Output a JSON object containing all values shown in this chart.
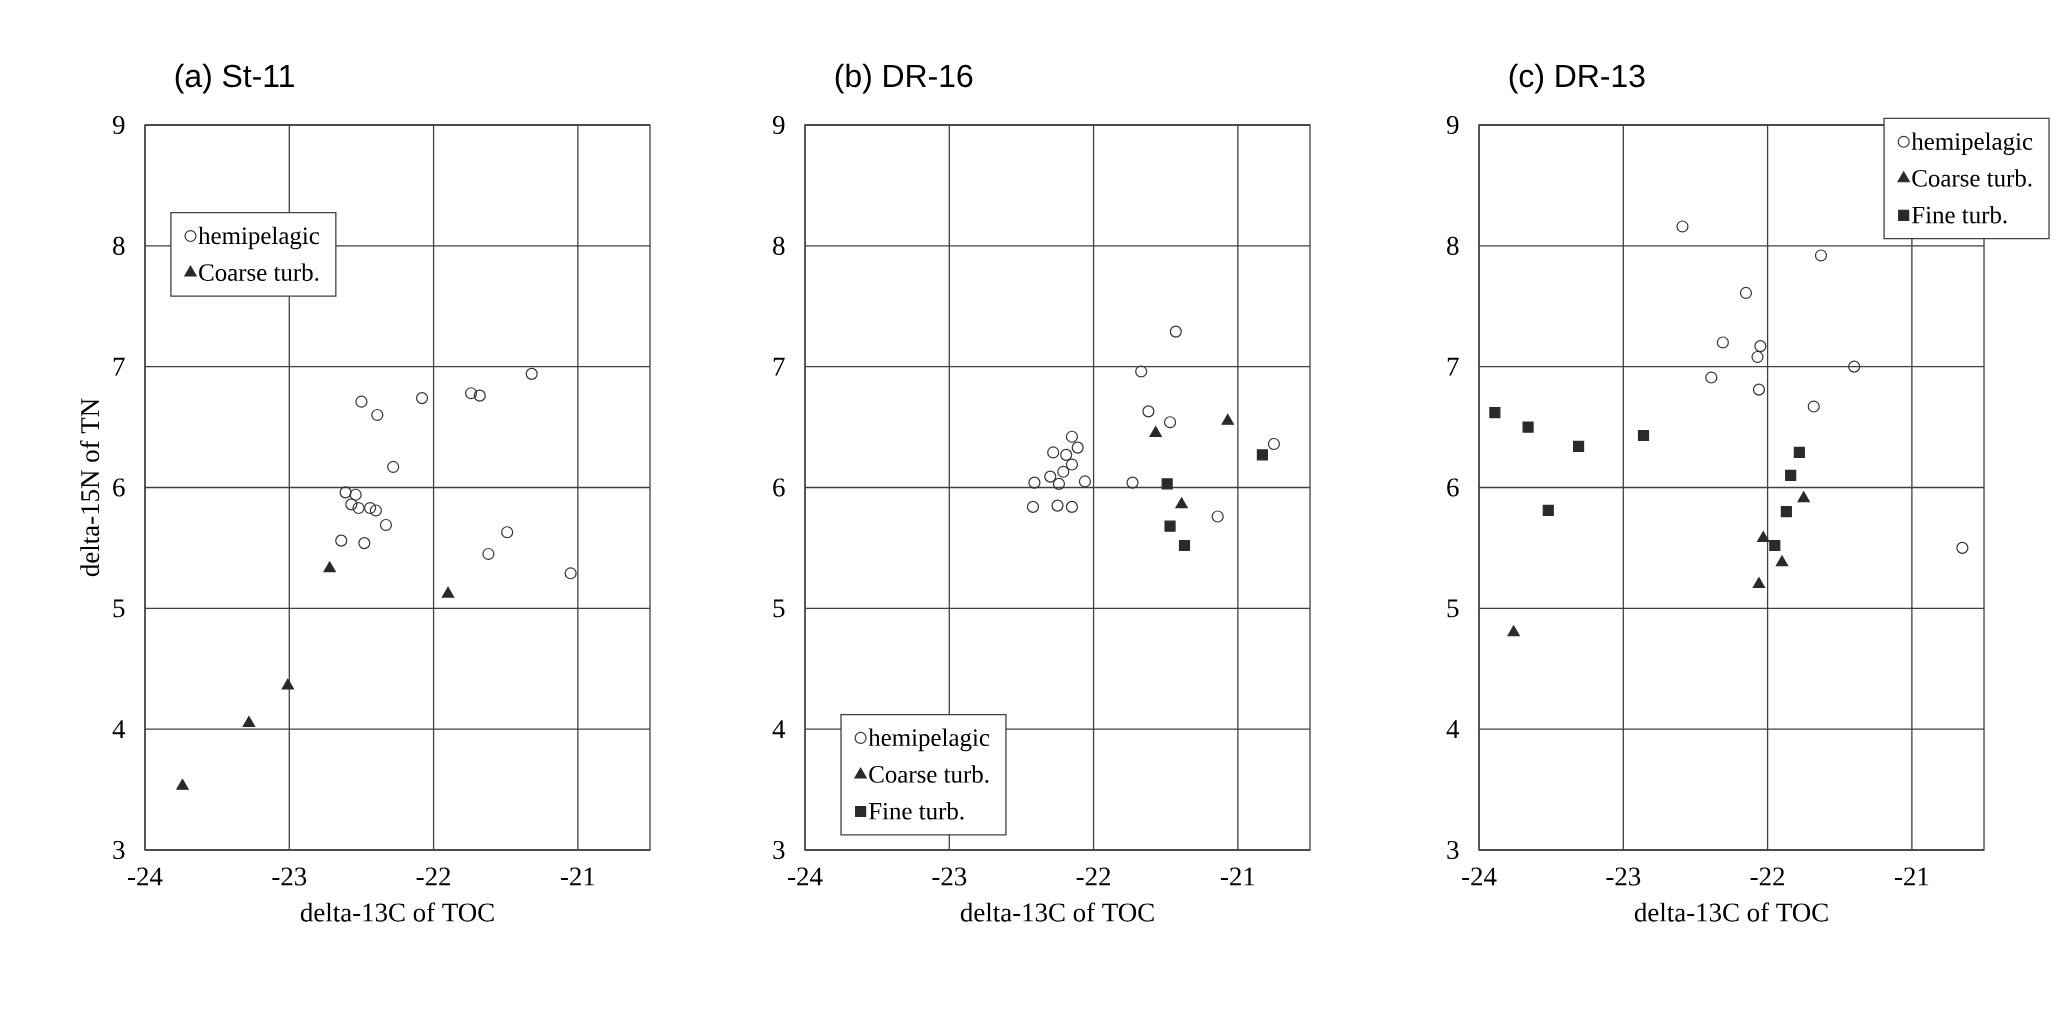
{
  "chart_data": [
    {
      "type": "scatter",
      "title": "(a) St-11",
      "xlabel": "delta-13C of TOC",
      "ylabel": "delta-15N of TN",
      "xlim": [
        -24,
        -20.5
      ],
      "ylim": [
        3,
        9
      ],
      "xticks": [
        -24,
        -23,
        -22,
        -21
      ],
      "yticks": [
        3,
        4,
        5,
        6,
        7,
        8,
        9
      ],
      "grid": true,
      "legend": "top left",
      "series": [
        {
          "name": "hemipelagic",
          "color": "#333333",
          "marker": "circle",
          "x": [
            -22.5,
            -22.39,
            -22.08,
            -21.74,
            -21.68,
            -21.32,
            -22.28,
            -22.61,
            -22.54,
            -22.57,
            -22.52,
            -22.44,
            -22.4,
            -22.33,
            -22.64,
            -22.48,
            -21.49,
            -21.62,
            -21.05
          ],
          "values": [
            6.71,
            6.6,
            6.74,
            6.78,
            6.76,
            6.94,
            6.17,
            5.96,
            5.94,
            5.86,
            5.83,
            5.83,
            5.81,
            5.69,
            5.56,
            5.54,
            5.63,
            5.45,
            5.29
          ]
        },
        {
          "name": "Coarse turb.",
          "color": "#2a2a2a",
          "marker": "triangle",
          "x": [
            -22.72,
            -21.9,
            -23.01,
            -23.28,
            -23.74
          ],
          "values": [
            5.33,
            5.12,
            4.36,
            4.05,
            3.53
          ]
        }
      ]
    },
    {
      "type": "scatter",
      "title": "(b) DR-16",
      "xlabel": "delta-13C of TOC",
      "xlim": [
        -24,
        -20.5
      ],
      "ylim": [
        3,
        9
      ],
      "xticks": [
        -24,
        -23,
        -22,
        -21
      ],
      "yticks": [
        3,
        4,
        5,
        6,
        7,
        8,
        9
      ],
      "grid": true,
      "legend": "bottom left",
      "series": [
        {
          "name": "hemipelagic",
          "color": "#333333",
          "marker": "circle",
          "x": [
            -21.43,
            -21.67,
            -21.62,
            -21.47,
            -20.75,
            -22.15,
            -22.11,
            -22.28,
            -22.19,
            -22.15,
            -22.21,
            -22.3,
            -22.24,
            -22.41,
            -22.06,
            -21.73,
            -22.42,
            -22.25,
            -22.15,
            -21.14
          ],
          "values": [
            7.29,
            6.96,
            6.63,
            6.54,
            6.36,
            6.42,
            6.33,
            6.29,
            6.27,
            6.19,
            6.13,
            6.09,
            6.03,
            6.04,
            6.05,
            6.04,
            5.84,
            5.85,
            5.84,
            5.76
          ]
        },
        {
          "name": "Coarse turb.",
          "color": "#2a2a2a",
          "marker": "triangle",
          "x": [
            -21.57,
            -21.07,
            -21.39
          ],
          "values": [
            6.45,
            6.55,
            5.86
          ]
        },
        {
          "name": "Fine turb.",
          "color": "#2a2a2a",
          "marker": "square",
          "x": [
            -21.49,
            -20.83,
            -21.47,
            -21.37
          ],
          "values": [
            6.03,
            6.27,
            5.68,
            5.52
          ]
        }
      ]
    },
    {
      "type": "scatter",
      "title": "(c) DR-13",
      "xlabel": "delta-13C of TOC",
      "xlim": [
        -24,
        -20.5
      ],
      "ylim": [
        3,
        9
      ],
      "xticks": [
        -24,
        -23,
        -22,
        -21
      ],
      "yticks": [
        3,
        4,
        5,
        6,
        7,
        8,
        9
      ],
      "grid": true,
      "legend": "top right",
      "series": [
        {
          "name": "hemipelagic",
          "color": "#333333",
          "marker": "circle",
          "x": [
            -22.59,
            -21.63,
            -22.15,
            -22.31,
            -22.05,
            -22.07,
            -22.39,
            -22.06,
            -21.4,
            -21.68,
            -20.65
          ],
          "values": [
            8.16,
            7.92,
            7.61,
            7.2,
            7.17,
            7.08,
            6.91,
            6.81,
            7.0,
            6.67,
            5.5
          ]
        },
        {
          "name": "Coarse turb.",
          "color": "#2a2a2a",
          "marker": "triangle",
          "x": [
            -21.75,
            -22.03,
            -21.9,
            -22.06,
            -23.76
          ],
          "values": [
            5.91,
            5.58,
            5.38,
            5.2,
            4.8
          ]
        },
        {
          "name": "Fine turb.",
          "color": "#2a2a2a",
          "marker": "square",
          "x": [
            -23.89,
            -23.66,
            -23.31,
            -22.86,
            -23.52,
            -21.78,
            -21.84,
            -21.87,
            -21.95
          ],
          "values": [
            6.62,
            6.5,
            6.34,
            6.43,
            5.81,
            6.29,
            6.1,
            5.8,
            5.52
          ]
        }
      ]
    }
  ]
}
